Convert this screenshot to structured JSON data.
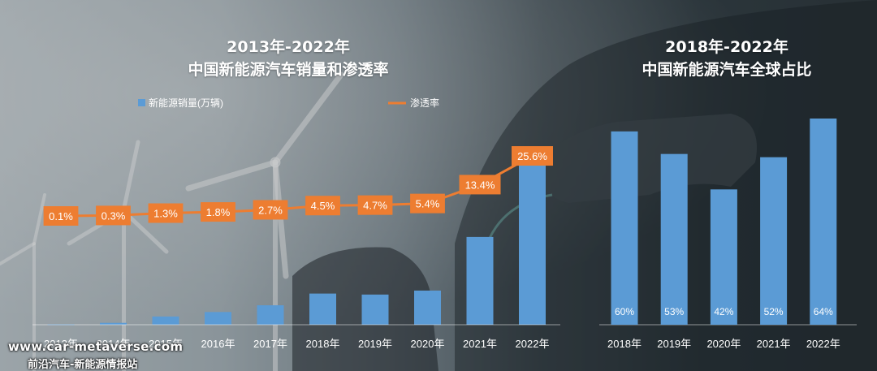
{
  "colors": {
    "bar": "#5b9bd5",
    "line": "#ed7d31",
    "text": "#ffffff"
  },
  "watermark": {
    "line1": "www.car-metaverse.com",
    "line2": "前沿汽车-新能源情报站"
  },
  "chart_data": [
    {
      "type": "bar+line",
      "title_line1": "2013年-2022年",
      "title_line2": "中国新能源汽车销量和渗透率",
      "legend": [
        "新能源销量(万辆)",
        "渗透率"
      ],
      "legend_position": "top",
      "categories": [
        "2013年",
        "2014年",
        "2015年",
        "2016年",
        "2017年",
        "2018年",
        "2019年",
        "2020年",
        "2021年",
        "2022年"
      ],
      "series": [
        {
          "name": "新能源销量(万辆)",
          "type": "bar",
          "values": [
            1.8,
            7.5,
            33,
            51,
            78,
            125,
            121,
            137,
            352,
            689
          ]
        },
        {
          "name": "渗透率",
          "type": "line",
          "values": [
            0.1,
            0.3,
            1.3,
            1.8,
            2.7,
            4.5,
            4.7,
            5.4,
            13.4,
            25.6
          ],
          "labels": [
            "0.1%",
            "0.3%",
            "1.3%",
            "1.8%",
            "2.7%",
            "4.5%",
            "4.7%",
            "5.4%",
            "13.4%",
            "25.6%"
          ]
        }
      ],
      "grid": false
    },
    {
      "type": "bar",
      "title_line1": "2018年-2022年",
      "title_line2": "中国新能源汽车全球占比",
      "categories": [
        "2018年",
        "2019年",
        "2020年",
        "2021年",
        "2022年"
      ],
      "values": [
        60,
        53,
        42,
        52,
        64
      ],
      "labels": [
        "60%",
        "53%",
        "42%",
        "52%",
        "64%"
      ],
      "grid": false
    }
  ]
}
